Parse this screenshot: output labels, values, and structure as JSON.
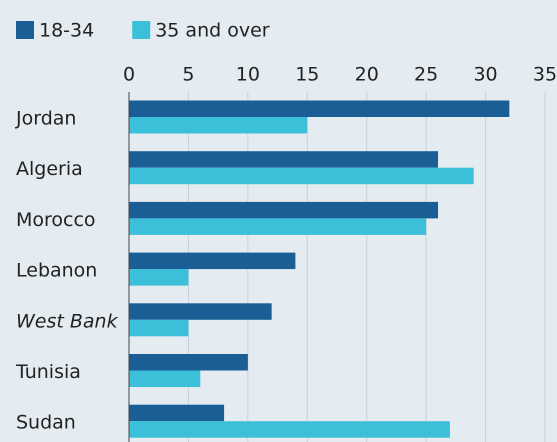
{
  "chart_data": {
    "type": "barh",
    "categories": [
      "Jordan",
      "Algeria",
      "Morocco",
      "Lebanon",
      "West Bank",
      "Tunisia",
      "Sudan"
    ],
    "series": [
      {
        "name": "18-34",
        "color": "#1b5e96",
        "values": [
          32,
          26,
          26,
          14,
          12,
          10,
          8
        ]
      },
      {
        "name": "35 and over",
        "color": "#3cbfd9",
        "values": [
          15,
          29,
          25,
          5,
          5,
          6,
          27
        ]
      }
    ],
    "xlim": [
      0,
      35
    ],
    "xticks": [
      0,
      5,
      10,
      15,
      20,
      25,
      30,
      35
    ],
    "grid": true,
    "legend": "top-left"
  }
}
